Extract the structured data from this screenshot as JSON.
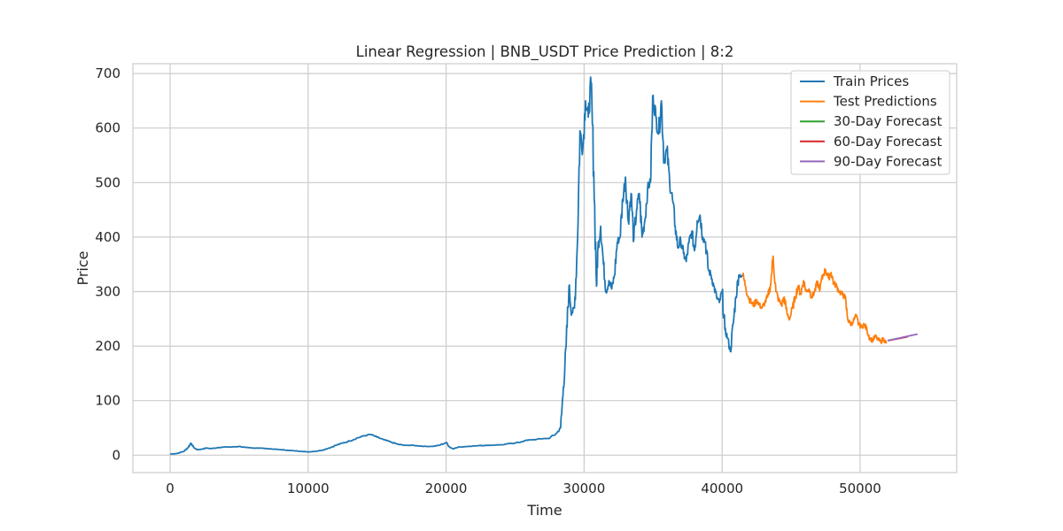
{
  "chart_data": {
    "type": "line",
    "title": "Linear Regression | BNB_USDT Price Prediction | 8:2",
    "xlabel": "Time",
    "ylabel": "Price",
    "xlim": [
      -2700,
      57000
    ],
    "ylim": [
      -32,
      718
    ],
    "xticks": [
      0,
      10000,
      20000,
      30000,
      40000,
      50000
    ],
    "yticks": [
      0,
      100,
      200,
      300,
      400,
      500,
      600,
      700
    ],
    "grid": true,
    "legend_position": "top-right",
    "series": [
      {
        "name": "Train Prices",
        "color": "#1f77b4",
        "x": [
          0,
          500,
          1000,
          1300,
          1500,
          1600,
          1800,
          2000,
          2300,
          2600,
          3000,
          3500,
          4000,
          4500,
          5000,
          5500,
          6000,
          6500,
          7000,
          7500,
          8000,
          8500,
          9000,
          9500,
          10000,
          10500,
          11000,
          11500,
          12000,
          12500,
          13000,
          13500,
          14000,
          14500,
          15000,
          15500,
          16000,
          16500,
          17000,
          17500,
          18000,
          18500,
          19000,
          19500,
          20000,
          20300,
          20500,
          21000,
          22000,
          23000,
          24000,
          25000,
          25500,
          26000,
          27000,
          27500,
          28000,
          28300,
          28500,
          28700,
          28900,
          29100,
          29300,
          29500,
          29700,
          29900,
          30100,
          30300,
          30500,
          30700,
          30900,
          31000,
          31200,
          31400,
          31600,
          31800,
          32000,
          32200,
          32400,
          32600,
          32800,
          33000,
          33200,
          33400,
          33600,
          33800,
          34000,
          34200,
          34400,
          34600,
          34800,
          35000,
          35200,
          35400,
          35600,
          35800,
          36000,
          36200,
          36400,
          36600,
          36800,
          37000,
          37200,
          37400,
          37600,
          37800,
          38000,
          38200,
          38400,
          38600,
          38800,
          39000,
          39200,
          39400,
          39600,
          39800,
          40000,
          40200,
          40400,
          40600,
          40800,
          41000,
          41200,
          41500
        ],
        "values": [
          2,
          3,
          7,
          14,
          22,
          18,
          12,
          10,
          11,
          13,
          12,
          14,
          15,
          15,
          16,
          14,
          13,
          13,
          12,
          11,
          10,
          9,
          8,
          7,
          6,
          7,
          9,
          13,
          18,
          22,
          26,
          31,
          35,
          38,
          33,
          28,
          24,
          20,
          18,
          18,
          17,
          16,
          16,
          18,
          23,
          14,
          12,
          15,
          17,
          18,
          19,
          22,
          25,
          28,
          30,
          31,
          40,
          50,
          125,
          200,
          310,
          260,
          270,
          380,
          595,
          560,
          650,
          620,
          683,
          520,
          310,
          380,
          420,
          350,
          300,
          320,
          305,
          330,
          390,
          400,
          470,
          510,
          430,
          480,
          395,
          450,
          480,
          400,
          430,
          490,
          500,
          660,
          620,
          590,
          650,
          540,
          560,
          500,
          470,
          420,
          380,
          395,
          370,
          355,
          390,
          410,
          375,
          430,
          440,
          400,
          390,
          340,
          330,
          310,
          290,
          280,
          300,
          230,
          215,
          190,
          240,
          290,
          330,
          330
        ]
      },
      {
        "name": "Test Predictions",
        "color": "#ff7f0e",
        "x": [
          41500,
          41700,
          41900,
          42100,
          42300,
          42500,
          42700,
          42900,
          43100,
          43300,
          43500,
          43700,
          43900,
          44100,
          44300,
          44500,
          44700,
          44900,
          45100,
          45300,
          45500,
          45700,
          45900,
          46100,
          46300,
          46500,
          46700,
          46900,
          47100,
          47300,
          47500,
          47700,
          47900,
          48100,
          48300,
          48500,
          48700,
          48900,
          49100,
          49300,
          49500,
          49700,
          49900,
          50100,
          50300,
          50500,
          50700,
          50900,
          51100,
          51300,
          51500,
          51700,
          51900
        ],
        "values": [
          330,
          310,
          290,
          280,
          275,
          285,
          275,
          270,
          280,
          290,
          310,
          365,
          300,
          285,
          275,
          290,
          260,
          250,
          270,
          290,
          310,
          295,
          320,
          300,
          305,
          290,
          300,
          315,
          305,
          330,
          340,
          325,
          335,
          315,
          310,
          300,
          295,
          290,
          250,
          240,
          245,
          255,
          240,
          235,
          240,
          230,
          215,
          210,
          218,
          212,
          208,
          214,
          205
        ]
      },
      {
        "name": "30-Day Forecast",
        "color": "#2ca02c",
        "x": [
          52000,
          52720
        ],
        "values": [
          210,
          214
        ]
      },
      {
        "name": "60-Day Forecast",
        "color": "#d62728",
        "x": [
          52000,
          53440
        ],
        "values": [
          210,
          217
        ]
      },
      {
        "name": "90-Day Forecast",
        "color": "#9467bd",
        "x": [
          52000,
          54160
        ],
        "values": [
          210,
          222
        ]
      }
    ]
  }
}
